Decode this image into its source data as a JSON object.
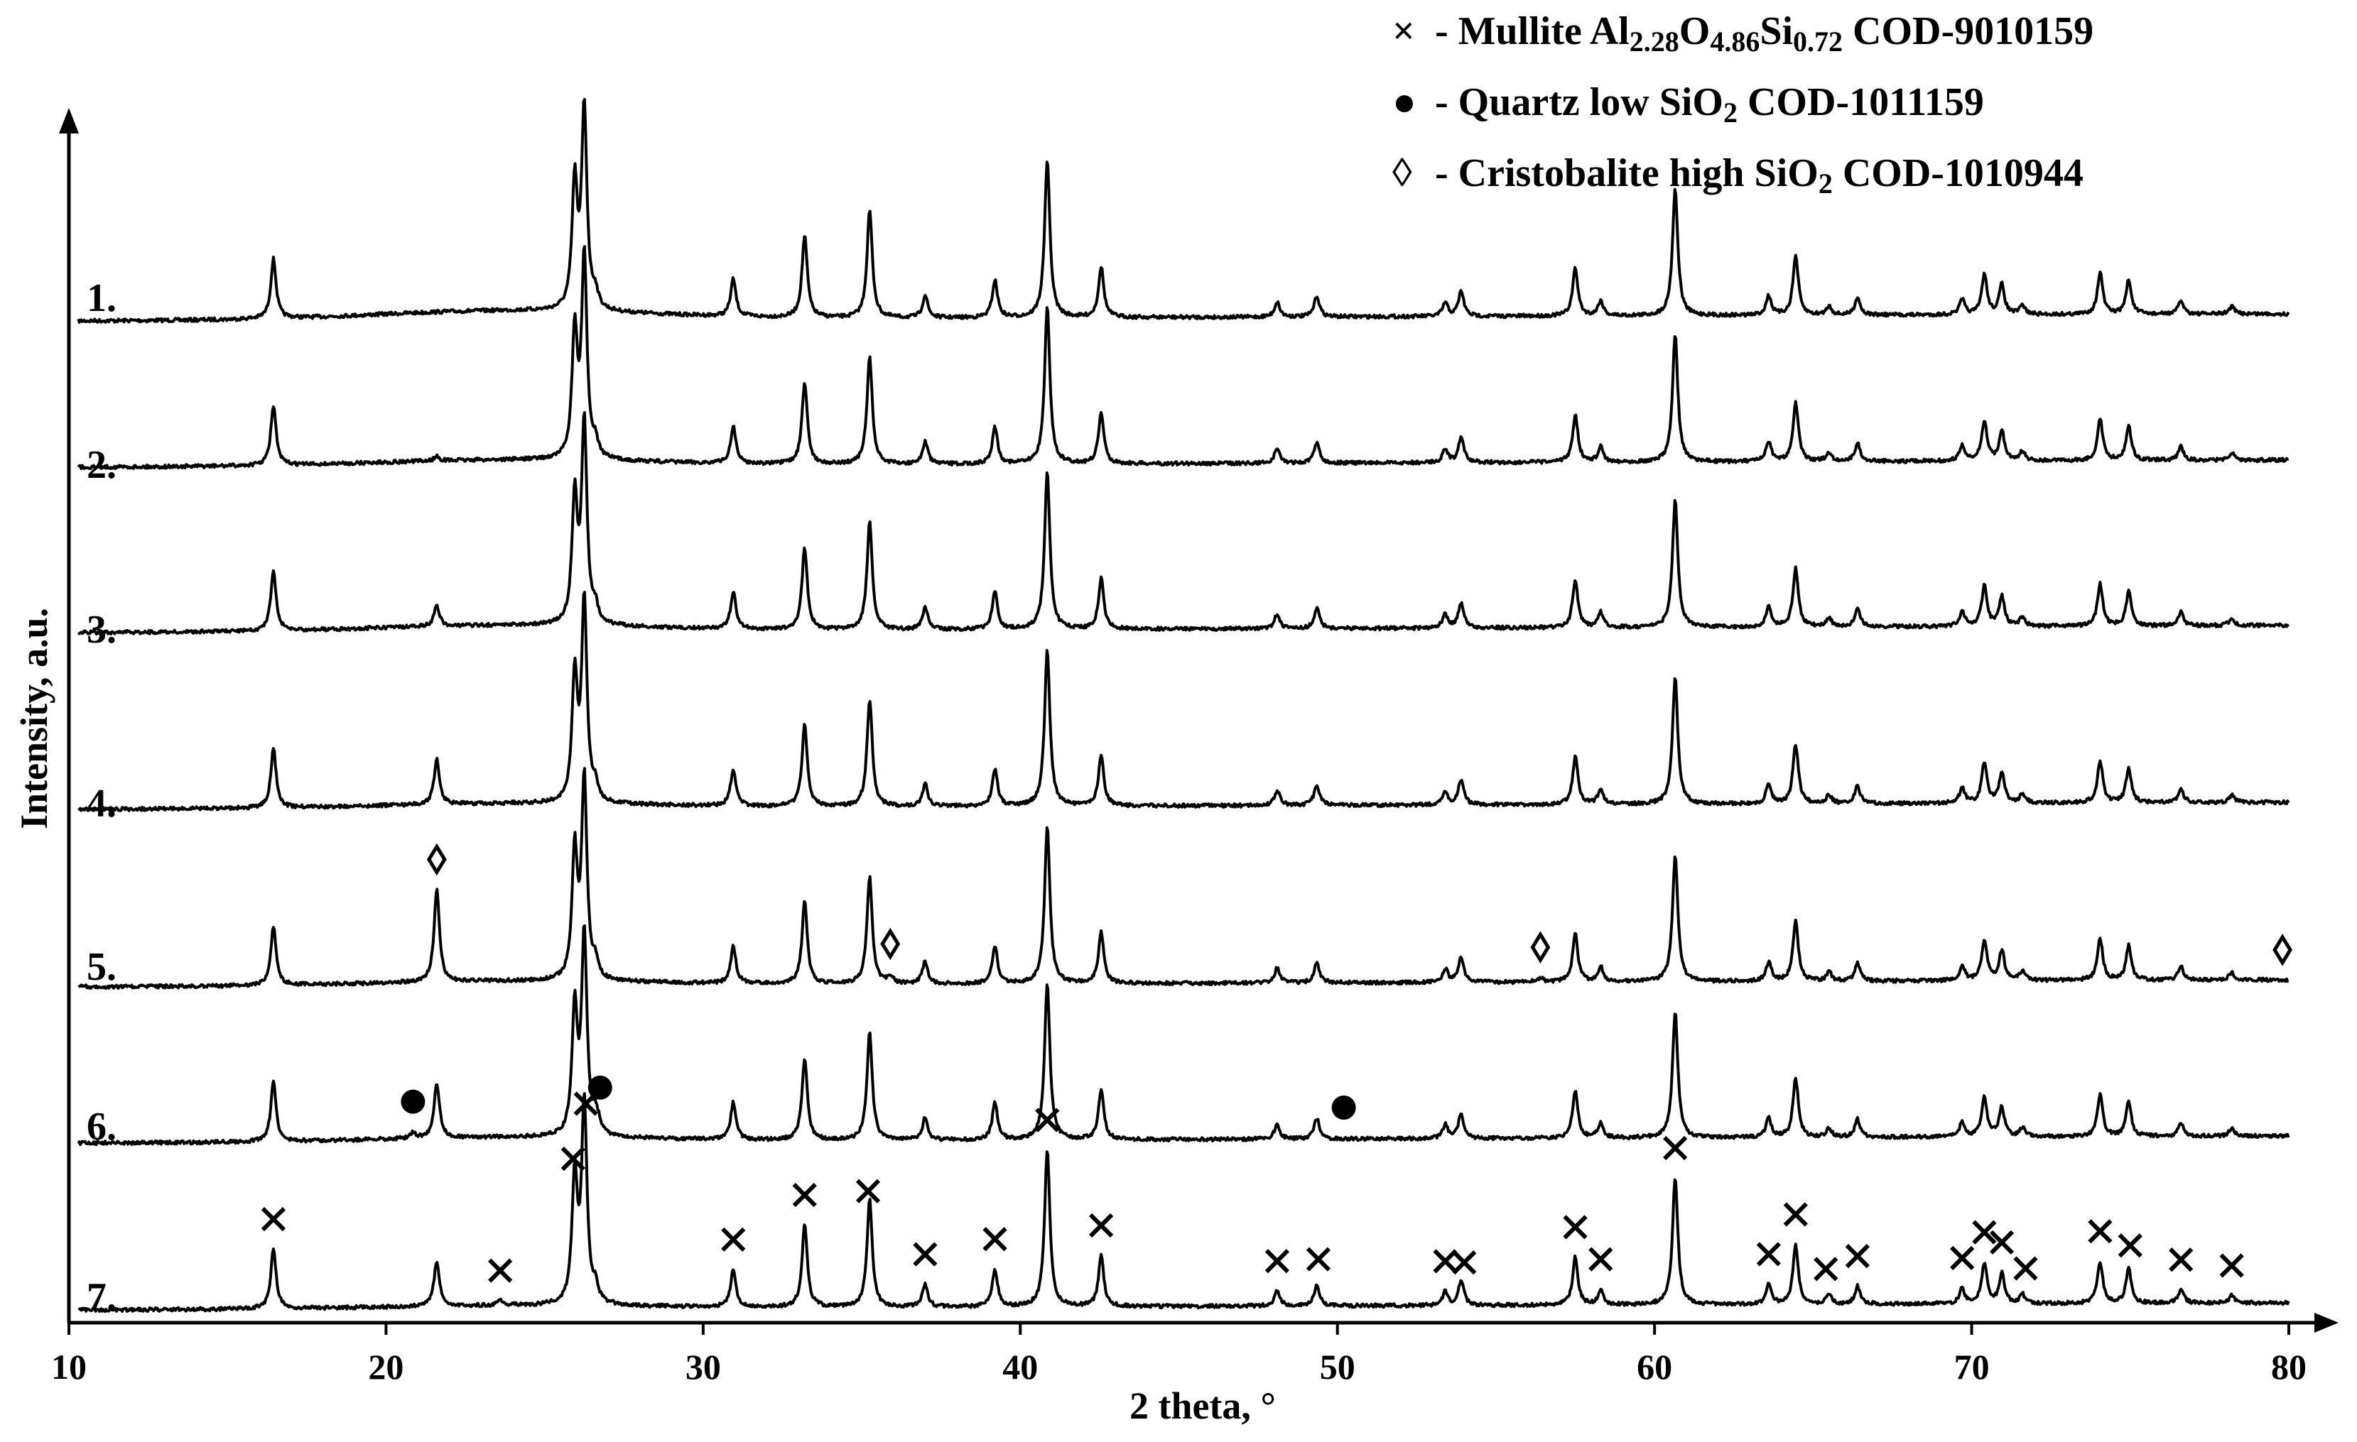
{
  "chart_data": {
    "type": "line",
    "title": "",
    "xlabel": "2 theta, °",
    "ylabel": "Intensity, a.u.",
    "xlim": [
      10,
      80
    ],
    "x_ticks": [
      "10",
      "20",
      "30",
      "40",
      "50",
      "60",
      "70",
      "80"
    ],
    "grid": false,
    "legend_position": "top-right",
    "legend": [
      {
        "marker": "×",
        "symbol": "cross",
        "label": "- Mullite Al2.28O4.86Si0.72 COD-9010159"
      },
      {
        "marker": "●",
        "symbol": "dot",
        "label": "- Quartz low SiO2 COD-1011159"
      },
      {
        "marker": "◊",
        "symbol": "diamond",
        "label": "- Cristobalite high SiO2 COD-1010944"
      }
    ],
    "peaks_common": [
      {
        "x": 16.45,
        "h": 0.4
      },
      {
        "x": 25.95,
        "h": 0.85
      },
      {
        "x": 26.25,
        "h": 1.35
      },
      {
        "x": 26.6,
        "h": 0.1
      },
      {
        "x": 30.95,
        "h": 0.25
      },
      {
        "x": 33.2,
        "h": 0.55
      },
      {
        "x": 35.25,
        "h": 0.72
      },
      {
        "x": 37.0,
        "h": 0.15
      },
      {
        "x": 39.2,
        "h": 0.25
      },
      {
        "x": 40.85,
        "h": 1.05
      },
      {
        "x": 42.55,
        "h": 0.34
      },
      {
        "x": 48.1,
        "h": 0.1
      },
      {
        "x": 49.35,
        "h": 0.14
      },
      {
        "x": 53.4,
        "h": 0.09
      },
      {
        "x": 53.9,
        "h": 0.17
      },
      {
        "x": 57.5,
        "h": 0.32
      },
      {
        "x": 58.3,
        "h": 0.1
      },
      {
        "x": 60.65,
        "h": 0.85
      },
      {
        "x": 63.6,
        "h": 0.13
      },
      {
        "x": 64.45,
        "h": 0.4
      },
      {
        "x": 65.5,
        "h": 0.06
      },
      {
        "x": 66.4,
        "h": 0.12
      },
      {
        "x": 69.7,
        "h": 0.1
      },
      {
        "x": 70.4,
        "h": 0.27
      },
      {
        "x": 70.95,
        "h": 0.2
      },
      {
        "x": 71.6,
        "h": 0.06
      },
      {
        "x": 74.05,
        "h": 0.28
      },
      {
        "x": 74.95,
        "h": 0.23
      },
      {
        "x": 76.6,
        "h": 0.09
      },
      {
        "x": 78.2,
        "h": 0.05
      }
    ],
    "series": [
      {
        "name": "1.",
        "extra_peaks": [],
        "hump": 0.06
      },
      {
        "name": "2.",
        "extra_peaks": [
          {
            "x": 21.6,
            "h": 0.03
          }
        ],
        "hump": 0.04
      },
      {
        "name": "3.",
        "extra_peaks": [
          {
            "x": 21.6,
            "h": 0.14
          }
        ],
        "hump": 0.04
      },
      {
        "name": "4.",
        "extra_peaks": [
          {
            "x": 21.6,
            "h": 0.3
          }
        ],
        "hump": 0.03
      },
      {
        "name": "5.",
        "extra_peaks": [
          {
            "x": 21.6,
            "h": 0.62
          },
          {
            "x": 35.9,
            "h": 0.05
          },
          {
            "x": 56.4,
            "h": 0.03
          }
        ],
        "hump": 0.03
      },
      {
        "name": "6.",
        "extra_peaks": [
          {
            "x": 21.6,
            "h": 0.37
          },
          {
            "x": 20.85,
            "h": 0.04
          },
          {
            "x": 26.7,
            "h": 0.05
          }
        ],
        "hump": 0.03
      },
      {
        "name": "7.",
        "extra_peaks": [
          {
            "x": 21.6,
            "h": 0.3
          },
          {
            "x": 23.6,
            "h": 0.03
          }
        ],
        "hump": 0.02
      }
    ],
    "phase_markers": [
      {
        "series": "7.",
        "symbol": "cross",
        "x": [
          16.45,
          23.6,
          25.9,
          26.3,
          30.95,
          33.2,
          35.2,
          37.0,
          39.2,
          40.85,
          42.55,
          48.1,
          49.4,
          53.4,
          54.0,
          57.5,
          58.3,
          60.65,
          63.6,
          64.45,
          65.4,
          66.4,
          69.7,
          70.4,
          70.95,
          71.7,
          74.05,
          75.0,
          76.6,
          78.2
        ]
      },
      {
        "series": "6.",
        "symbol": "dot",
        "x": [
          20.85,
          26.75,
          50.2
        ]
      },
      {
        "series": "5.",
        "symbol": "diamond",
        "x": [
          21.6,
          35.9,
          56.4,
          79.8
        ]
      }
    ]
  }
}
